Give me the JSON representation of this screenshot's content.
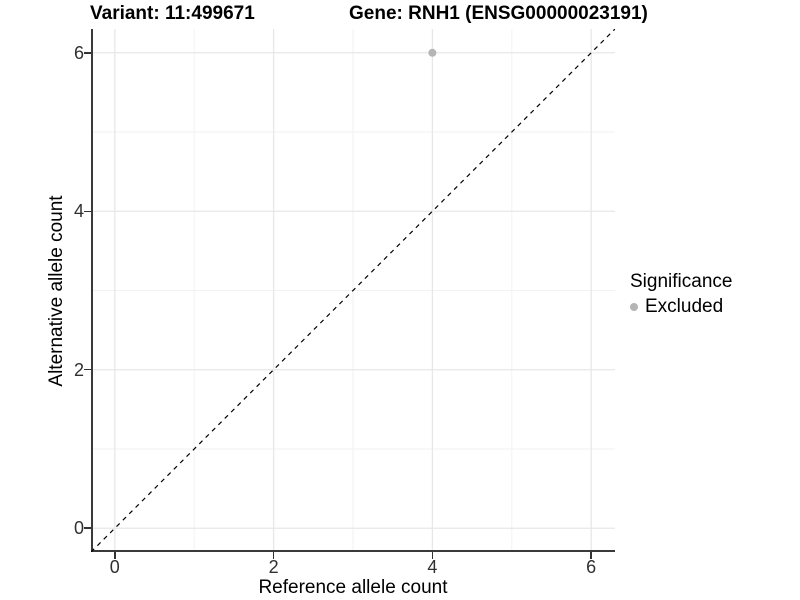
{
  "chart_data": {
    "type": "scatter",
    "title_left": "Variant: 11:499671",
    "title_right": "Gene: RNH1 (ENSG00000023191)",
    "xlabel": "Reference allele count",
    "ylabel": "Alternative allele count",
    "xlim": [
      -0.3,
      6.3
    ],
    "ylim": [
      -0.3,
      6.3
    ],
    "x_ticks": [
      0,
      2,
      4,
      6
    ],
    "y_ticks": [
      0,
      2,
      4,
      6
    ],
    "minor_ticks": [
      1,
      3,
      5
    ],
    "grid": true,
    "reference_line": {
      "type": "identity y=x",
      "style": "dashed",
      "color": "#000000"
    },
    "series": [
      {
        "name": "Excluded",
        "color": "#b5b5b5",
        "points": [
          {
            "x": 4,
            "y": 6
          }
        ]
      }
    ],
    "legend": {
      "title": "Significance",
      "position": "right",
      "items": [
        {
          "label": "Excluded",
          "color": "#b5b5b5"
        }
      ]
    }
  },
  "colors": {
    "background": "#ffffff",
    "grid_major": "#e7e7e7",
    "grid_minor": "#f2f2f2",
    "axis_line": "#3a3a3a",
    "tick_mark": "#333333",
    "tick_label": "#303030",
    "dashed_line": "#000000"
  }
}
